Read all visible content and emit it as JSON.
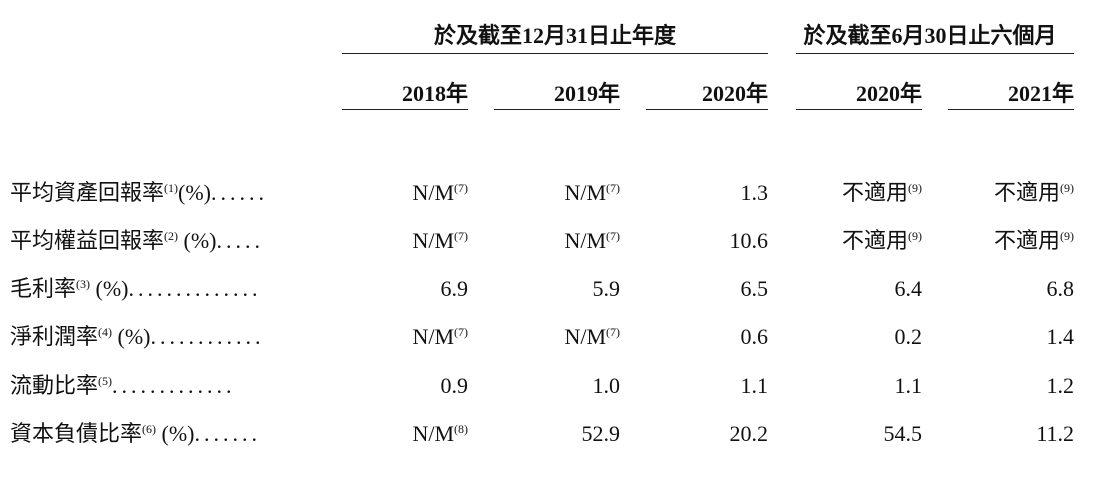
{
  "header": {
    "group_fy": "於及截至12月31日止年度",
    "group_6m": "於及截至6月30日止六個月",
    "years": [
      "2018年",
      "2019年",
      "2020年",
      "2020年",
      "2021年"
    ]
  },
  "rows": [
    {
      "label": "平均資產回報率",
      "label_note": "(1)",
      "label_unit": "(%)",
      "dots": "......",
      "cells": [
        {
          "value": "N/M",
          "note": "(7)"
        },
        {
          "value": "N/M",
          "note": "(7)"
        },
        {
          "value": "1.3",
          "note": ""
        },
        {
          "value": "不適用",
          "note": "(9)"
        },
        {
          "value": "不適用",
          "note": "(9)"
        }
      ]
    },
    {
      "label": "平均權益回報率",
      "label_note": "(2)",
      "label_unit": " (%)",
      "dots": ".....",
      "cells": [
        {
          "value": "N/M",
          "note": "(7)"
        },
        {
          "value": "N/M",
          "note": "(7)"
        },
        {
          "value": "10.6",
          "note": ""
        },
        {
          "value": "不適用",
          "note": "(9)"
        },
        {
          "value": "不適用",
          "note": "(9)"
        }
      ]
    },
    {
      "label": "毛利率",
      "label_note": "(3)",
      "label_unit": " (%)",
      "dots": "..............",
      "cells": [
        {
          "value": "6.9",
          "note": ""
        },
        {
          "value": "5.9",
          "note": ""
        },
        {
          "value": "6.5",
          "note": ""
        },
        {
          "value": "6.4",
          "note": ""
        },
        {
          "value": "6.8",
          "note": ""
        }
      ]
    },
    {
      "label": "淨利潤率",
      "label_note": "(4)",
      "label_unit": " (%)",
      "dots": "............",
      "cells": [
        {
          "value": "N/M",
          "note": "(7)"
        },
        {
          "value": "N/M",
          "note": "(7)"
        },
        {
          "value": "0.6",
          "note": ""
        },
        {
          "value": "0.2",
          "note": ""
        },
        {
          "value": "1.4",
          "note": ""
        }
      ]
    },
    {
      "label": "流動比率",
      "label_note": "(5)",
      "label_unit": "",
      "dots": ".............",
      "cells": [
        {
          "value": "0.9",
          "note": ""
        },
        {
          "value": "1.0",
          "note": ""
        },
        {
          "value": "1.1",
          "note": ""
        },
        {
          "value": "1.1",
          "note": ""
        },
        {
          "value": "1.2",
          "note": ""
        }
      ]
    },
    {
      "label": "資本負債比率",
      "label_note": "(6)",
      "label_unit": " (%)",
      "dots": ".......",
      "cells": [
        {
          "value": "N/M",
          "note": "(8)"
        },
        {
          "value": "52.9",
          "note": ""
        },
        {
          "value": "20.2",
          "note": ""
        },
        {
          "value": "54.5",
          "note": ""
        },
        {
          "value": "11.2",
          "note": ""
        }
      ]
    }
  ]
}
